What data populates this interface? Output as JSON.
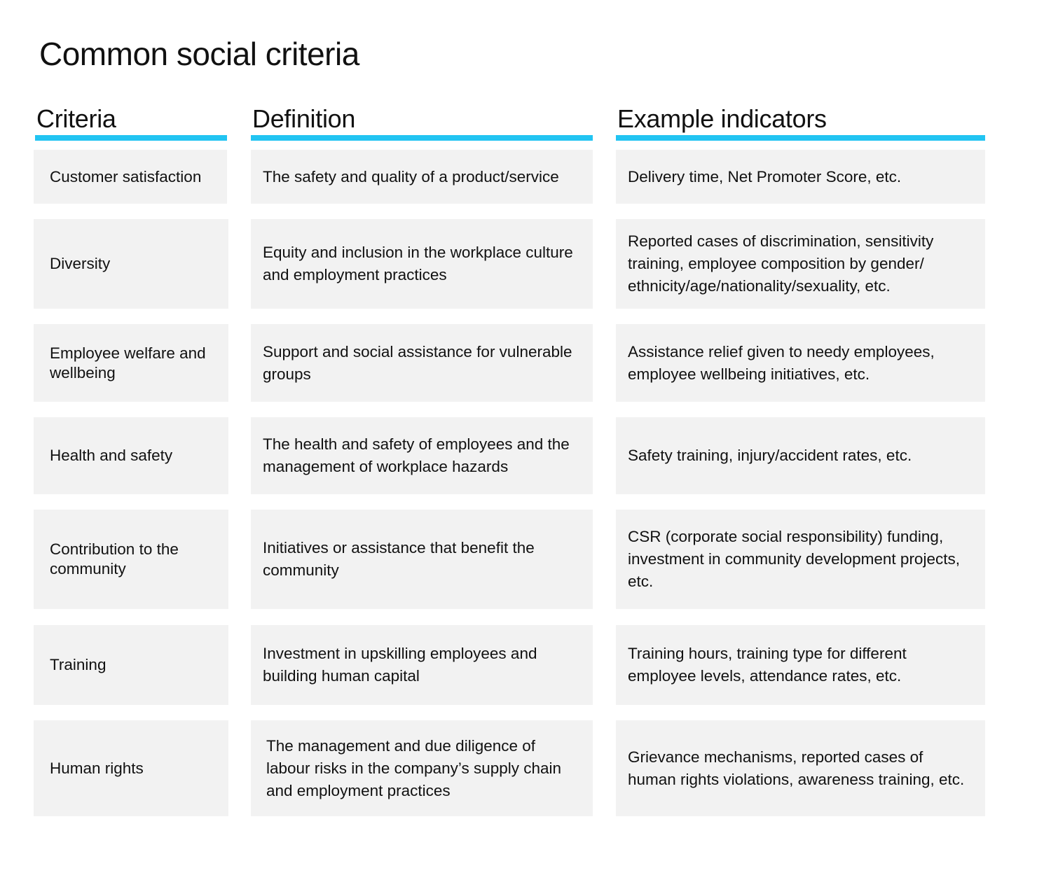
{
  "title": "Common social criteria",
  "headers": {
    "criteria": "Criteria",
    "definition": "Definition",
    "examples": "Example indicators"
  },
  "accent_color": "#22c4f2",
  "rows": [
    {
      "criteria": "Customer satisfaction",
      "definition": "The safety and quality of a product/service",
      "examples": "Delivery time, Net Promoter Score, etc."
    },
    {
      "criteria": "Diversity",
      "definition": "Equity and inclusion in the workplace culture and employment practices",
      "examples": "Reported cases of discrimination, sensitivity training, employee composition by gender/ ethnicity/age/nationality/sexuality, etc."
    },
    {
      "criteria": "Employee welfare and wellbeing",
      "definition": "Support and social assistance for vulnerable groups",
      "examples": "Assistance relief given to needy employees, employee wellbeing initiatives, etc."
    },
    {
      "criteria": "Health and safety",
      "definition": "The health and safety of employees and the management of workplace hazards",
      "examples": "Safety training, injury/accident rates, etc."
    },
    {
      "criteria": "Contribution to the community",
      "definition": "Initiatives or assistance that benefit the community",
      "examples": "CSR (corporate social responsibility) funding, investment in community development projects, etc."
    },
    {
      "criteria": "Training",
      "definition": "Investment in upskilling employees and building human capital",
      "examples": "Training hours, training type for different employee levels, attendance rates, etc."
    },
    {
      "criteria": "Human rights",
      "definition": "The management and due diligence of labour risks in the company’s supply chain and employment practices",
      "examples": "Grievance mechanisms, reported cases of human rights violations, awareness training, etc."
    }
  ]
}
